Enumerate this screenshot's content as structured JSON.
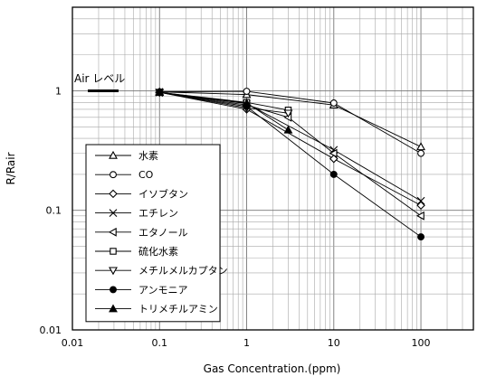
{
  "chart_data": {
    "type": "line",
    "xlabel": "Gas Concentration.(ppm)",
    "ylabel": "R/Rair",
    "x_scale": "log",
    "y_scale": "log",
    "xlim": [
      0.01,
      400
    ],
    "ylim": [
      0.01,
      5
    ],
    "x_ticks": [
      {
        "value": 0.01,
        "label": "0.01"
      },
      {
        "value": 0.1,
        "label": "0.1"
      },
      {
        "value": 1,
        "label": "1"
      },
      {
        "value": 10,
        "label": "10"
      },
      {
        "value": 100,
        "label": "100"
      }
    ],
    "y_ticks": [
      {
        "value": 0.01,
        "label": "0.01"
      },
      {
        "value": 0.1,
        "label": "0.1"
      },
      {
        "value": 1,
        "label": "1"
      }
    ],
    "grid": true,
    "legend_position": "bottom-left",
    "annotation": {
      "label": "Air レベル",
      "value": 1
    },
    "series": [
      {
        "name": "水素",
        "marker": "triangle-up",
        "x": [
          0.1,
          1,
          10,
          100
        ],
        "y": [
          0.98,
          0.93,
          0.76,
          0.34
        ]
      },
      {
        "name": "CO",
        "marker": "circle-open",
        "x": [
          0.1,
          1,
          10,
          100
        ],
        "y": [
          0.98,
          0.99,
          0.79,
          0.3
        ]
      },
      {
        "name": "イソブタン",
        "marker": "diamond",
        "x": [
          0.1,
          1,
          10,
          100
        ],
        "y": [
          0.97,
          0.7,
          0.27,
          0.11
        ]
      },
      {
        "name": "エチレン",
        "marker": "x",
        "x": [
          0.1,
          1,
          10,
          100
        ],
        "y": [
          0.97,
          0.78,
          0.32,
          0.12
        ]
      },
      {
        "name": "エタノール",
        "marker": "triangle-left",
        "x": [
          0.1,
          1,
          3,
          10,
          100
        ],
        "y": [
          0.97,
          0.76,
          0.6,
          0.3,
          0.09
        ]
      },
      {
        "name": "硫化水素",
        "marker": "square-open",
        "x": [
          0.1,
          1,
          3
        ],
        "y": [
          0.97,
          0.8,
          0.69
        ]
      },
      {
        "name": "メチルメルカプタン",
        "marker": "triangle-down",
        "x": [
          0.1,
          1,
          3
        ],
        "y": [
          0.97,
          0.72,
          0.65
        ]
      },
      {
        "name": "アンモニア",
        "marker": "circle-filled",
        "x": [
          0.1,
          1,
          10,
          100
        ],
        "y": [
          0.97,
          0.74,
          0.2,
          0.06
        ]
      },
      {
        "name": "トリメチルアミン",
        "marker": "triangle-filled",
        "x": [
          0.1,
          1,
          3
        ],
        "y": [
          0.97,
          0.79,
          0.47
        ]
      }
    ]
  }
}
